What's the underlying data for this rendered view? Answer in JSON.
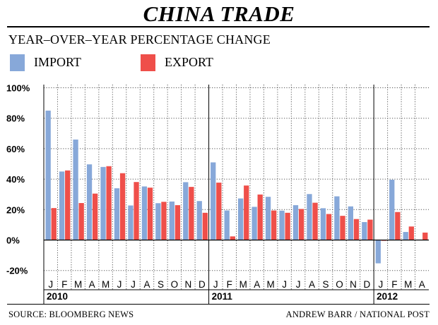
{
  "header": {
    "title": "CHINA TRADE",
    "subtitle": "YEAR–OVER–YEAR PERCENTAGE CHANGE"
  },
  "legend": [
    {
      "label": "IMPORT",
      "color": "#87a8d9"
    },
    {
      "label": "EXPORT",
      "color": "#ef4f4a"
    }
  ],
  "footer": {
    "source": "SOURCE: BLOOMBERG NEWS",
    "credit": "ANDREW BARR / NATIONAL POST"
  },
  "chart_data": {
    "type": "bar",
    "ylim": [
      -20,
      100
    ],
    "yticks": [
      -20,
      0,
      20,
      40,
      60,
      80,
      100
    ],
    "ytick_labels": [
      "-20%",
      "0%",
      "20%",
      "40%",
      "60%",
      "80%",
      "100%"
    ],
    "grid": true,
    "legend_placement": "top-left",
    "categories": [
      "J",
      "F",
      "M",
      "A",
      "M",
      "J",
      "J",
      "A",
      "S",
      "O",
      "N",
      "D",
      "J",
      "F",
      "M",
      "A",
      "M",
      "J",
      "J",
      "A",
      "S",
      "O",
      "N",
      "D",
      "J",
      "F",
      "M",
      "A"
    ],
    "year_groups": [
      {
        "label": "2010",
        "count": 12
      },
      {
        "label": "2011",
        "count": 12
      },
      {
        "label": "2012",
        "count": 4
      }
    ],
    "series": [
      {
        "name": "IMPORT",
        "color": "#87a8d9",
        "values": [
          85,
          45,
          66,
          49.7,
          48,
          34,
          22.7,
          35.2,
          24.2,
          25.3,
          38,
          25.6,
          51,
          19.4,
          27.3,
          21.8,
          28.4,
          19.3,
          22.9,
          30.2,
          20.9,
          28.7,
          22.1,
          11.8,
          -15.3,
          39.6,
          5.3,
          0.3
        ]
      },
      {
        "name": "EXPORT",
        "color": "#ef4f4a",
        "values": [
          21,
          45.7,
          24.3,
          30.5,
          48.5,
          43.9,
          38.1,
          34.4,
          25.1,
          22.9,
          34.9,
          17.9,
          37.7,
          2.4,
          35.8,
          29.9,
          19.4,
          17.9,
          20.4,
          24.5,
          17.1,
          15.9,
          13.8,
          13.4,
          -0.5,
          18.4,
          8.9,
          4.9
        ]
      }
    ]
  }
}
